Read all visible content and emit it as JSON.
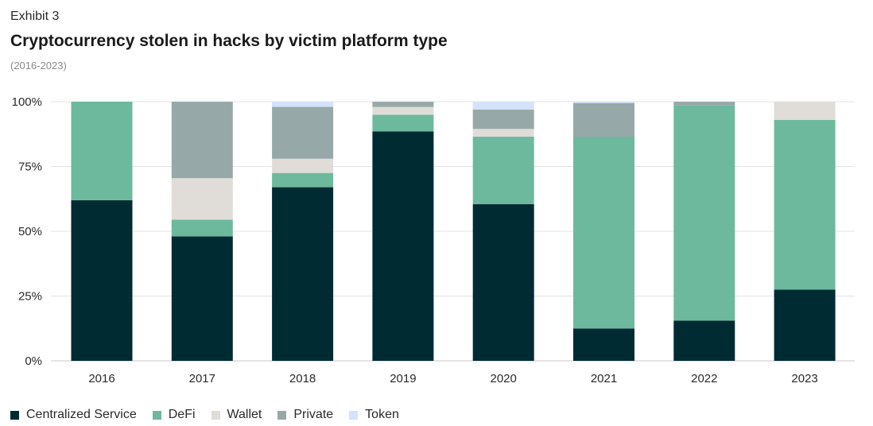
{
  "header": {
    "exhibit": "Exhibit 3",
    "title": "Cryptocurrency stolen in hacks by victim platform type",
    "subtitle": "(2016-2023)"
  },
  "chart_data": {
    "type": "bar",
    "stacked": true,
    "categories": [
      "2016",
      "2017",
      "2018",
      "2019",
      "2020",
      "2021",
      "2022",
      "2023"
    ],
    "yticks": [
      "0%",
      "25%",
      "50%",
      "75%",
      "100%"
    ],
    "ylim": [
      0,
      100
    ],
    "grid": true,
    "legend_position": "bottom-left",
    "series": [
      {
        "name": "Centralized Service",
        "color": "#002b33",
        "values": [
          62,
          48,
          67,
          88.5,
          60.5,
          12.5,
          15.5,
          27.5
        ]
      },
      {
        "name": "DeFi",
        "color": "#6db99e",
        "values": [
          38,
          6.5,
          5.5,
          6.5,
          26,
          74,
          83,
          65.5
        ]
      },
      {
        "name": "Wallet",
        "color": "#e0dcd7",
        "values": [
          0,
          16,
          5.5,
          3,
          3,
          0,
          0,
          7
        ]
      },
      {
        "name": "Private",
        "color": "#97a8a8",
        "values": [
          0,
          29.5,
          20,
          2,
          7.5,
          13,
          1.5,
          0
        ]
      },
      {
        "name": "Token",
        "color": "#d4e2fa",
        "values": [
          0,
          0,
          2,
          0,
          3,
          0.5,
          0,
          0
        ]
      }
    ]
  }
}
